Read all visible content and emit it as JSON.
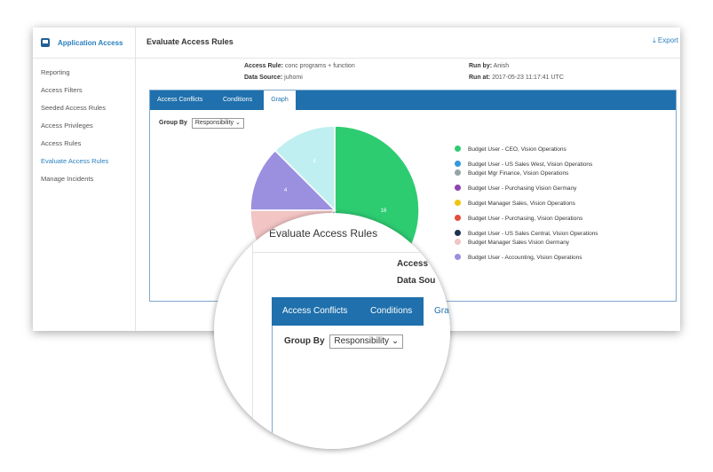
{
  "app": {
    "title": "Application Access"
  },
  "sidebar": {
    "items": [
      {
        "label": "Reporting"
      },
      {
        "label": "Access Filters"
      },
      {
        "label": "Seeded Access Rules"
      },
      {
        "label": "Access Privileges"
      },
      {
        "label": "Access Rules"
      },
      {
        "label": "Evaluate Access Rules",
        "active": true
      },
      {
        "label": "Manage Incidents"
      }
    ]
  },
  "header": {
    "title": "Evaluate Access Rules",
    "export_label": "Export"
  },
  "meta": {
    "access_rule_label": "Access Rule:",
    "access_rule_value": "conc programs + function",
    "data_source_label": "Data Source:",
    "data_source_value": "juhomi",
    "run_by_label": "Run by:",
    "run_by_value": "Anish",
    "run_at_label": "Run at:",
    "run_at_value": "2017-05-23 11:17:41 UTC"
  },
  "tabs": [
    {
      "label": "Access Conflicts"
    },
    {
      "label": "Conditions"
    },
    {
      "label": "Graph",
      "active": true
    }
  ],
  "group_by": {
    "label": "Group By",
    "value": "Responsibility"
  },
  "chart_data": {
    "type": "pie",
    "slices_visible": [
      {
        "label": "Budget User - CEO, Vision Operations",
        "value": 16,
        "color": "#2ecc71"
      },
      {
        "label": "Budget User - Accounting, Vision Operations",
        "value": 4,
        "color": "#9b8fe0"
      },
      {
        "label": "Budget Manager Sales Vision Germany",
        "value": 4,
        "color": "#f2c4c4"
      },
      {
        "label": "Budget User - US Sales Central, Vision Operations",
        "value": 4,
        "color": "#1e3252"
      },
      {
        "label": "",
        "value": 4,
        "color": "#bfeff0"
      }
    ],
    "legend": [
      {
        "label": "Budget User - CEO, Vision Operations",
        "color": "#2ecc71"
      },
      {
        "label": "Budget User - US Sales West, Vision Operations",
        "color": "#3498db"
      },
      {
        "label": "Budget Mgr Finance, Vision Operations",
        "color": "#95a5a6"
      },
      {
        "label": "Budget User - Purchasing Vision Germany",
        "color": "#8e44ad"
      },
      {
        "label": "Budget Manager Sales, Vision Operations",
        "color": "#f1c40f"
      },
      {
        "label": "Budget User - Purchasing, Vision Operations",
        "color": "#e74c3c"
      },
      {
        "label": "Budget User - US Sales Central, Vision Operations",
        "color": "#1e3252"
      },
      {
        "label": "Budget Manager Sales Vision Germany",
        "color": "#f2c4c4"
      },
      {
        "label": "Budget User - Accounting, Vision Operations",
        "color": "#9b8fe0"
      }
    ]
  },
  "zoom": {
    "title": "Evaluate Access Rules",
    "access_label": "Access",
    "data_source_label": "Data Sou",
    "tab1": "Access Conflicts",
    "tab2": "Conditions",
    "tab3": "Gra",
    "group_by_label": "Group By",
    "group_by_value": "Responsibility"
  },
  "colors": {
    "accent": "#1f70ac",
    "link": "#2a7fbf"
  }
}
